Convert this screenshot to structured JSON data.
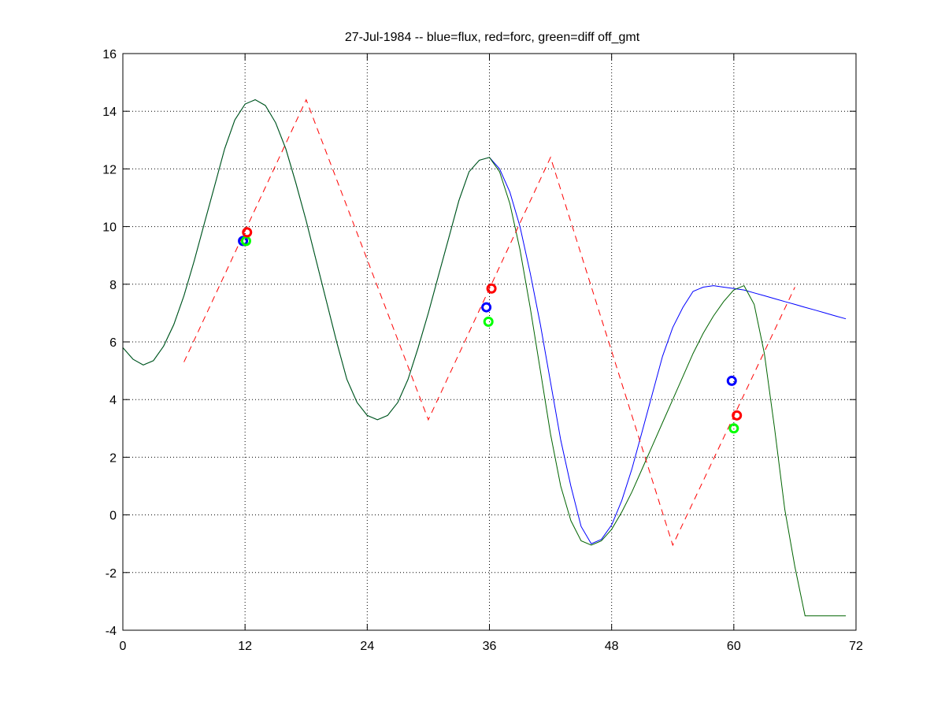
{
  "chart_data": {
    "type": "line",
    "title": "27-Jul-1984 -- blue=flux, red=forc, green=diff off_gmt",
    "xlabel": "",
    "ylabel": "",
    "xlim": [
      0,
      72
    ],
    "ylim": [
      -4,
      16
    ],
    "xticks": [
      0,
      12,
      24,
      36,
      48,
      60,
      72
    ],
    "yticks": [
      -4,
      -2,
      0,
      2,
      4,
      6,
      8,
      10,
      12,
      14,
      16
    ],
    "grid": true,
    "grid_style": "dotted",
    "series": [
      {
        "color": "#0000ff",
        "style": "solid",
        "x": [
          0,
          1,
          2,
          3,
          4,
          5,
          6,
          7,
          8,
          9,
          10,
          11,
          12,
          13,
          14,
          15,
          16,
          17,
          18,
          19,
          20,
          21,
          22,
          23,
          24,
          25,
          26,
          27,
          28,
          29,
          30,
          31,
          32,
          33,
          34,
          35,
          36,
          37,
          38,
          39,
          40,
          41,
          42,
          43,
          44,
          45,
          46,
          47,
          48,
          49,
          50,
          51,
          52,
          53,
          54,
          55,
          56,
          57,
          58,
          59,
          60,
          61,
          62,
          63,
          64,
          65,
          66,
          67,
          68,
          69,
          70,
          71
        ],
        "y": [
          5.8,
          5.4,
          5.2,
          5.35,
          5.85,
          6.6,
          7.6,
          8.8,
          10.1,
          11.4,
          12.7,
          13.7,
          14.25,
          14.4,
          14.2,
          13.6,
          12.7,
          11.5,
          10.2,
          8.8,
          7.4,
          6.0,
          4.7,
          3.9,
          3.45,
          3.3,
          3.45,
          3.9,
          4.7,
          5.8,
          7.0,
          8.3,
          9.6,
          10.9,
          11.9,
          12.3,
          12.4,
          12.0,
          11.2,
          10.0,
          8.4,
          6.6,
          4.6,
          2.6,
          1.0,
          -0.4,
          -1.0,
          -0.85,
          -0.35,
          0.5,
          1.6,
          2.9,
          4.2,
          5.5,
          6.5,
          7.2,
          7.75,
          7.9,
          7.95,
          7.9,
          7.85,
          7.8,
          7.7,
          7.6,
          7.5,
          7.4,
          7.3,
          7.2,
          7.1,
          7.0,
          6.9,
          6.8
        ]
      },
      {
        "color": "#006400",
        "style": "solid",
        "x": [
          0,
          1,
          2,
          3,
          4,
          5,
          6,
          7,
          8,
          9,
          10,
          11,
          12,
          13,
          14,
          15,
          16,
          17,
          18,
          19,
          20,
          21,
          22,
          23,
          24,
          25,
          26,
          27,
          28,
          29,
          30,
          31,
          32,
          33,
          34,
          35,
          36,
          37,
          38,
          39,
          40,
          41,
          42,
          43,
          44,
          45,
          46,
          47,
          48,
          49,
          50,
          51,
          52,
          53,
          54,
          55,
          56,
          57,
          58,
          59,
          60,
          61,
          62,
          63,
          64,
          65,
          66,
          67,
          68,
          69,
          70,
          71
        ],
        "y": [
          5.8,
          5.4,
          5.2,
          5.35,
          5.85,
          6.6,
          7.6,
          8.8,
          10.1,
          11.4,
          12.7,
          13.7,
          14.25,
          14.4,
          14.2,
          13.6,
          12.7,
          11.5,
          10.2,
          8.8,
          7.4,
          6.0,
          4.7,
          3.9,
          3.45,
          3.3,
          3.45,
          3.9,
          4.7,
          5.8,
          7.0,
          8.3,
          9.6,
          10.9,
          11.9,
          12.3,
          12.4,
          11.9,
          10.8,
          9.2,
          7.2,
          5.0,
          2.8,
          1.0,
          -0.2,
          -0.9,
          -1.05,
          -0.9,
          -0.5,
          0.1,
          0.8,
          1.6,
          2.4,
          3.2,
          4.0,
          4.8,
          5.6,
          6.3,
          6.9,
          7.4,
          7.8,
          7.95,
          7.3,
          5.6,
          3.0,
          0.2,
          -1.8,
          -3.5,
          -3.5,
          -3.5,
          -3.5,
          -3.5
        ]
      },
      {
        "color": "#ff0000",
        "style": "dashed",
        "x": [
          6,
          18,
          30,
          42,
          54,
          66
        ],
        "y": [
          5.3,
          14.4,
          3.3,
          12.4,
          -1.05,
          7.9
        ]
      }
    ],
    "markers": [
      {
        "x": 11.8,
        "y": 9.5,
        "color": "#0000ff"
      },
      {
        "x": 12.1,
        "y": 9.5,
        "color": "#00ff00"
      },
      {
        "x": 12.2,
        "y": 9.8,
        "color": "#ff0000"
      },
      {
        "x": 35.7,
        "y": 7.2,
        "color": "#0000ff"
      },
      {
        "x": 35.9,
        "y": 6.7,
        "color": "#00ff00"
      },
      {
        "x": 36.2,
        "y": 7.85,
        "color": "#ff0000"
      },
      {
        "x": 59.8,
        "y": 4.65,
        "color": "#0000ff"
      },
      {
        "x": 60.0,
        "y": 3.0,
        "color": "#00ff00"
      },
      {
        "x": 60.3,
        "y": 3.45,
        "color": "#ff0000"
      }
    ]
  }
}
